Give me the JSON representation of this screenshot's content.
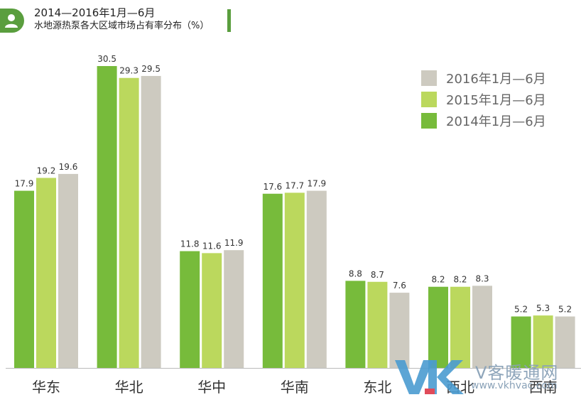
{
  "header": {
    "icon": "user-icon",
    "title_line1": "2014—2016年1月—6月",
    "title_line2": "水地源热泵各大区域市场占有率分布（%）",
    "accent_color": "#5a9e3e"
  },
  "watermark": {
    "logo_text": "VK",
    "name": "V客暖通网",
    "url": "www.vkhvac.com"
  },
  "chart_data": {
    "type": "bar",
    "categories": [
      "华东",
      "华北",
      "华中",
      "华南",
      "东北",
      "西北",
      "西南"
    ],
    "series": [
      {
        "name": "2014年1月—6月",
        "color": "#77bb3b",
        "values": [
          17.9,
          30.5,
          11.8,
          17.6,
          8.8,
          8.2,
          5.2
        ]
      },
      {
        "name": "2015年1月—6月",
        "color": "#bbd85d",
        "values": [
          19.2,
          29.3,
          11.6,
          17.7,
          8.7,
          8.2,
          5.3
        ]
      },
      {
        "name": "2016年1月—6月",
        "color": "#cdcac0",
        "values": [
          19.6,
          29.5,
          11.9,
          17.9,
          7.6,
          8.3,
          5.2
        ]
      }
    ],
    "legend_order": [
      2,
      1,
      0
    ],
    "legend_position": "top-right",
    "ylim": [
      0,
      30.5
    ],
    "grid": false,
    "data_labels": true
  }
}
